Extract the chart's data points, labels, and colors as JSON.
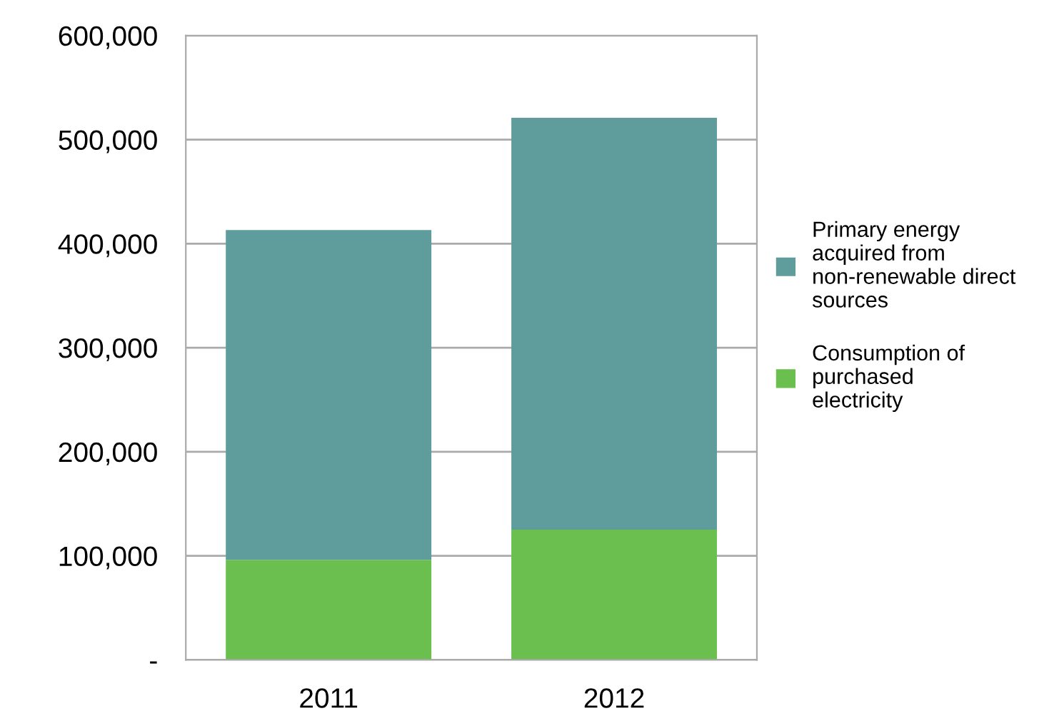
{
  "chart_data": {
    "type": "bar",
    "stacked": true,
    "categories": [
      "2011",
      "2012"
    ],
    "series": [
      {
        "name": "Consumption of purchased electricity",
        "color": "#6abf4f",
        "values": [
          96000,
          125000
        ]
      },
      {
        "name": "Primary energy acquired from non-renewable direct sources",
        "color": "#5f9c9c",
        "values": [
          317000,
          396000
        ]
      }
    ],
    "ylim": [
      0,
      600000
    ],
    "yticks": [
      {
        "value": 0,
        "label": "-"
      },
      {
        "value": 100000,
        "label": "100,000"
      },
      {
        "value": 200000,
        "label": "200,000"
      },
      {
        "value": 300000,
        "label": "300,000"
      },
      {
        "value": 400000,
        "label": "400,000"
      },
      {
        "value": 500000,
        "label": "500,000"
      },
      {
        "value": 600000,
        "label": "600,000"
      }
    ],
    "grid": "y",
    "legend": "right"
  }
}
